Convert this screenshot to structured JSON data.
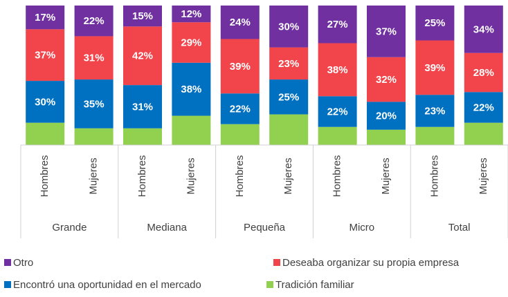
{
  "chart_data": {
    "type": "stacked_bar",
    "categories": [
      "Hombres",
      "Mujeres",
      "Hombres",
      "Mujeres",
      "Hombres",
      "Mujeres",
      "Hombres",
      "Mujeres",
      "Hombres",
      "Mujeres"
    ],
    "groups": [
      "Grande",
      "Mediana",
      "Pequeña",
      "Micro",
      "Total"
    ],
    "ylim": [
      0,
      100
    ],
    "series": [
      {
        "name": "Otro",
        "color": "#7030a0",
        "values": [
          17,
          22,
          15,
          12,
          24,
          30,
          27,
          37,
          25,
          34
        ],
        "value_labels": [
          "17%",
          "22%",
          "15%",
          "12%",
          "24%",
          "30%",
          "27%",
          "37%",
          "25%",
          "34%"
        ]
      },
      {
        "name": "Deseaba organizar su propia empresa",
        "color": "#f2444b",
        "values": [
          37,
          31,
          42,
          29,
          39,
          23,
          38,
          32,
          39,
          28
        ],
        "value_labels": [
          "37%",
          "31%",
          "42%",
          "29%",
          "39%",
          "23%",
          "38%",
          "32%",
          "39%",
          "28%"
        ]
      },
      {
        "name": "Encontró una oportunidad en el mercado",
        "color": "#0070c0",
        "values": [
          30,
          35,
          31,
          38,
          22,
          25,
          22,
          20,
          23,
          22
        ],
        "value_labels": [
          "30%",
          "35%",
          "31%",
          "38%",
          "22%",
          "25%",
          "22%",
          "20%",
          "23%",
          "22%"
        ]
      },
      {
        "name": "Tradición familiar",
        "color": "#92d050",
        "values": [
          16,
          12,
          12,
          21,
          15,
          22,
          13,
          11,
          13,
          16
        ]
      }
    ]
  }
}
